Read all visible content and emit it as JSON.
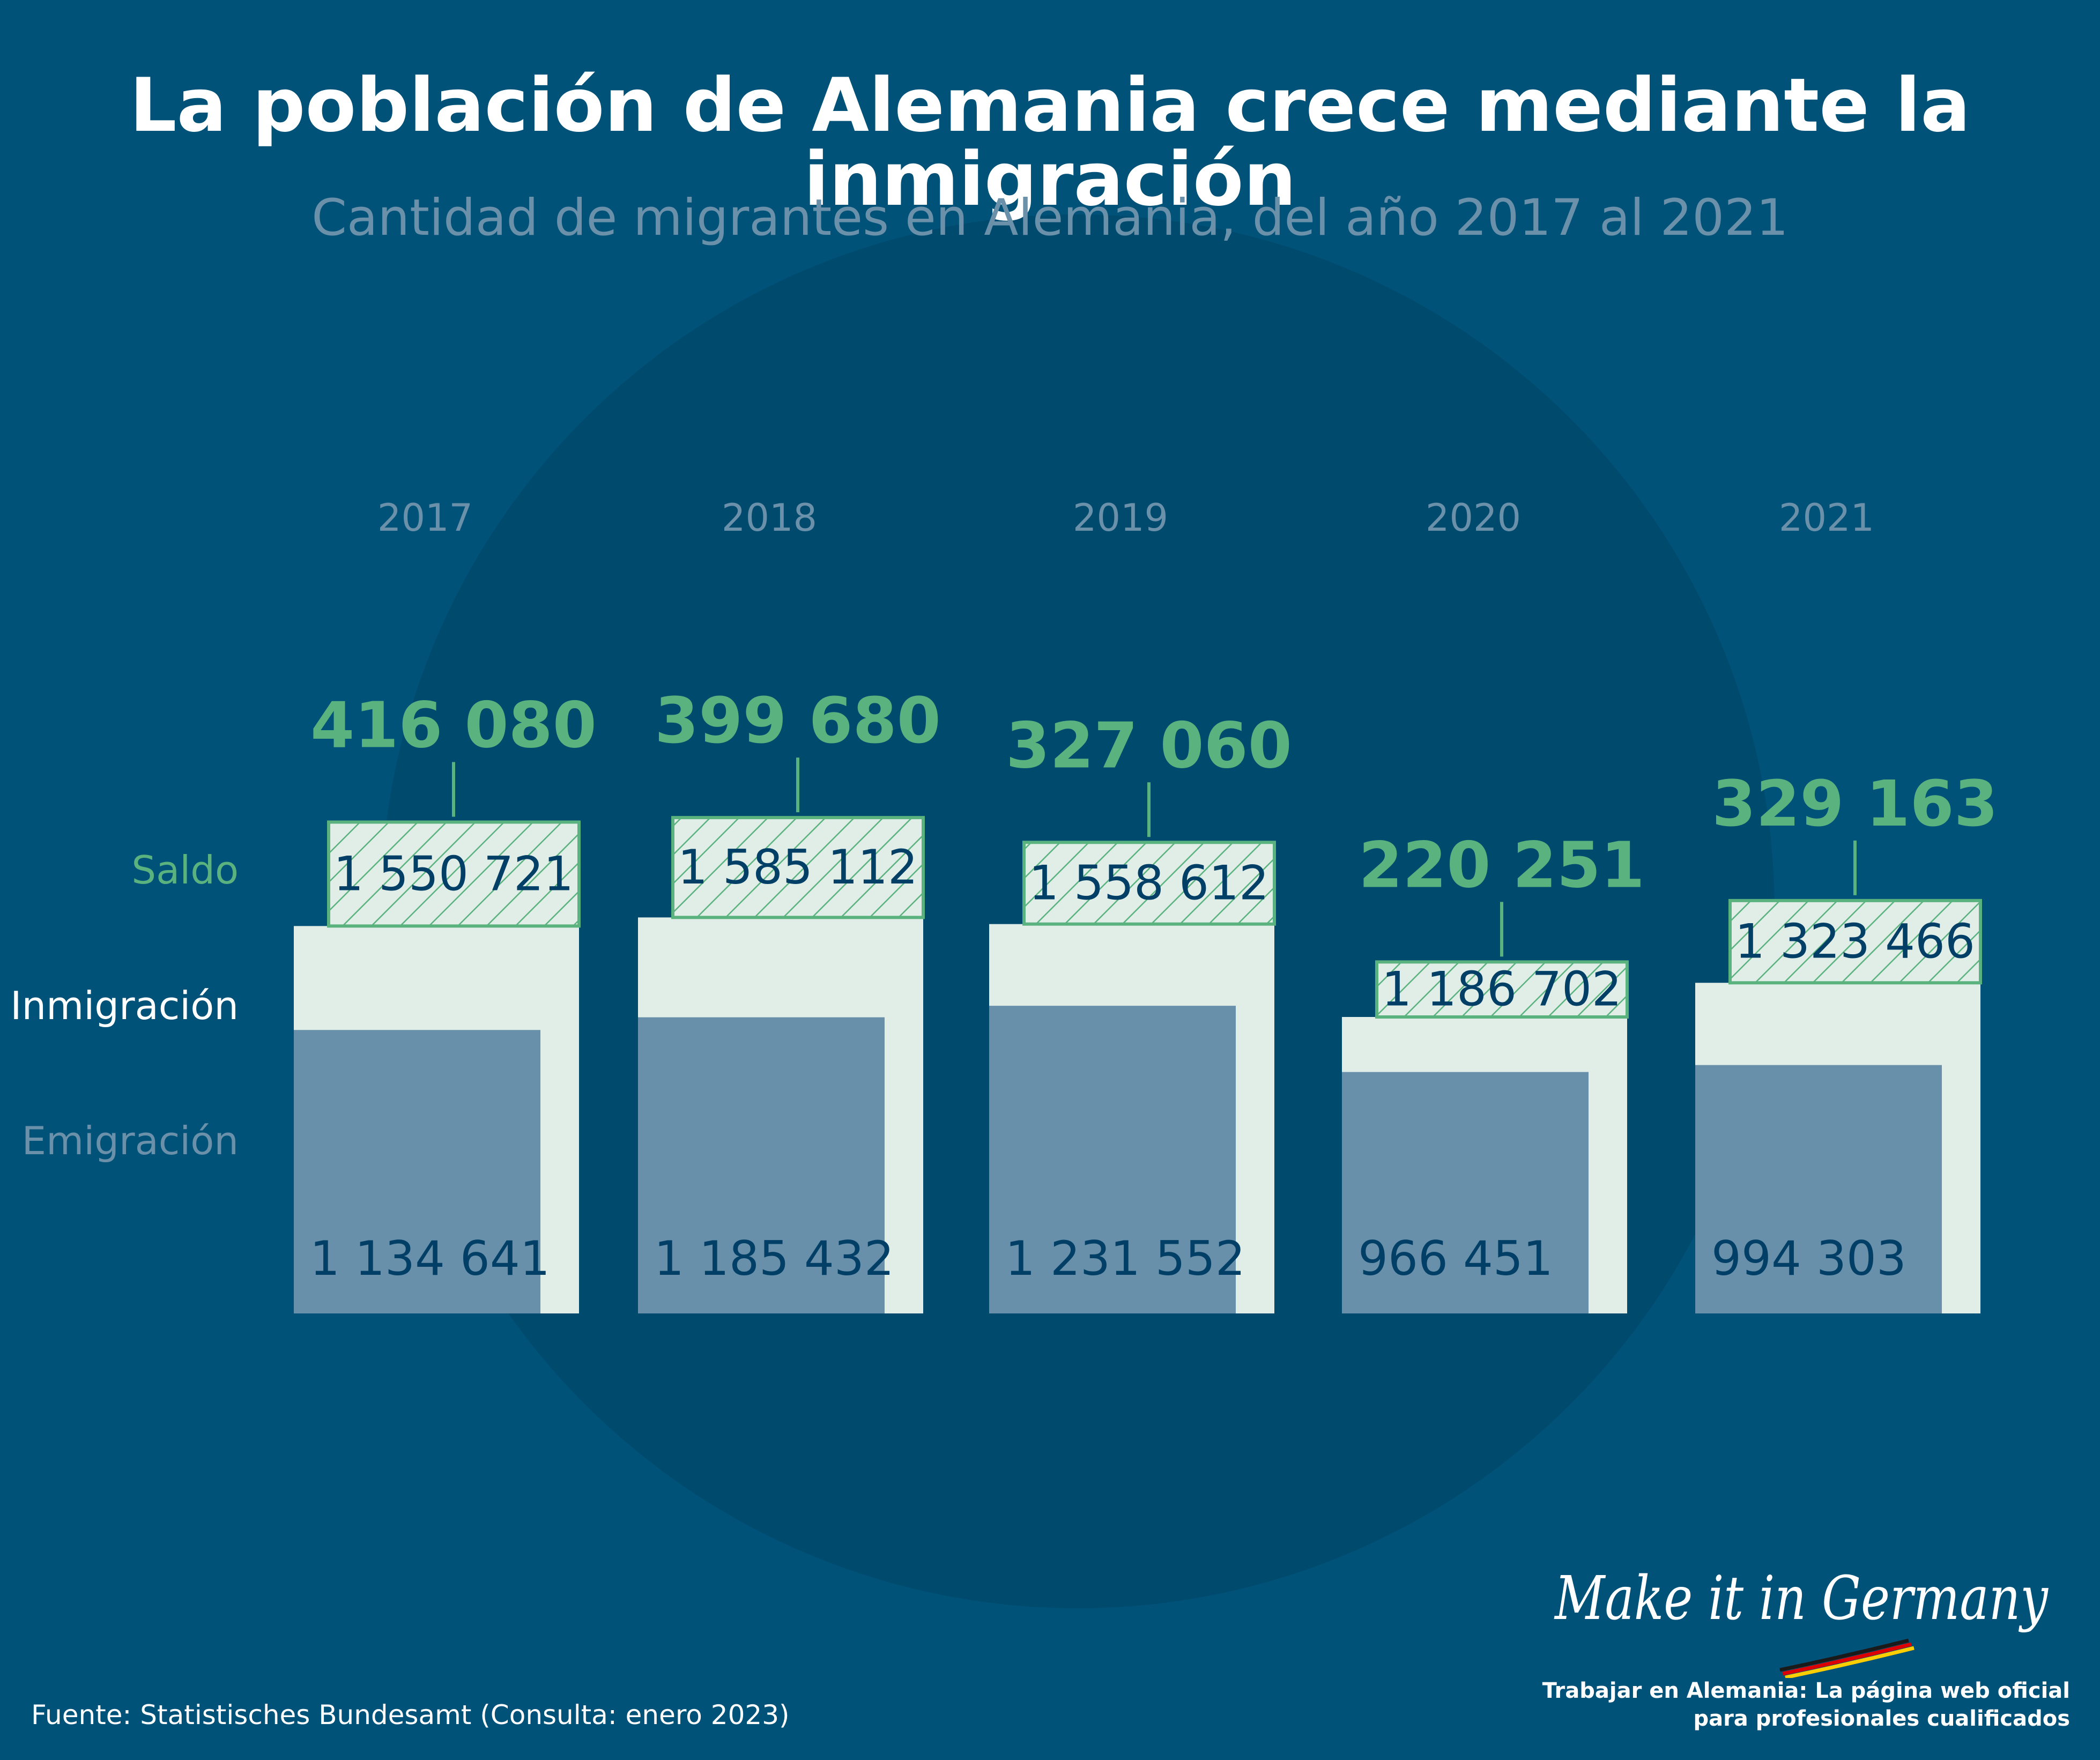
{
  "title": "La población de Alemania crece mediante la inmigración",
  "subtitle": "Cantidad de migrantes en Alemania, del año 2017 al 2021",
  "legend": {
    "saldo": "Saldo",
    "inmigracion": "Inmigración",
    "emigracion": "Emigración"
  },
  "colors": {
    "background": "#015279",
    "circle": "#004a6e",
    "saldo": "#5ab27e",
    "inmigracion": "#e1eee7",
    "emigracion": "#6890ab",
    "label_dark": "#013f66",
    "year": "#6a91a9"
  },
  "chart_data": {
    "type": "bar",
    "categories": [
      "2017",
      "2018",
      "2019",
      "2020",
      "2021"
    ],
    "series": [
      {
        "name": "Saldo",
        "values": [
          416080,
          399680,
          327060,
          220251,
          329163
        ]
      },
      {
        "name": "Inmigración",
        "values": [
          1550721,
          1585112,
          1558612,
          1186702,
          1323466
        ]
      },
      {
        "name": "Emigración",
        "values": [
          1134641,
          1185432,
          1231552,
          966451,
          994303
        ]
      }
    ],
    "labels": {
      "saldo": [
        "416 080",
        "399 680",
        "327 060",
        "220 251",
        "329 163"
      ],
      "inmigracion": [
        "1 550 721",
        "1 585 112",
        "1 558 612",
        "1 186 702",
        "1 323 466"
      ],
      "emigracion": [
        "1 134 641",
        "1 185 432",
        "1 231 552",
        "966 451",
        "994 303"
      ]
    }
  },
  "source": "Fuente:  Statistisches Bundesamt (Consulta:  enero 2023)",
  "logo": "Make it in Germany",
  "tagline": [
    "Trabajar en Alemania: La página web oficial",
    "para profesionales cualificados"
  ]
}
